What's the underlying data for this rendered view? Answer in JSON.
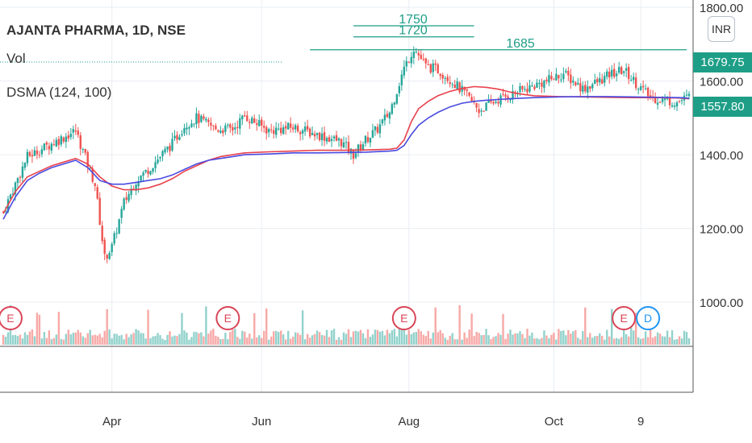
{
  "header": {
    "symbol": "AJANTA PHARMA, 1D, NSE",
    "volume_label": "Vol",
    "indicator_label": "DSMA (124, 100)",
    "currency": "INR"
  },
  "price_tags": {
    "high": "1679.75",
    "last": "1557.80"
  },
  "colors": {
    "up": "#26a69a",
    "down": "#ef5350",
    "ma_red": "#e8414b",
    "ma_blue": "#4a4ae0",
    "level_line": "#1e9e87",
    "event_badge": "#d94557",
    "dividend_badge": "#2196f3"
  },
  "chart_data": {
    "type": "candlestick",
    "title": "AJANTA PHARMA, 1D, NSE",
    "x_ticks": [
      {
        "label": "Apr",
        "x": 45
      },
      {
        "label": "Jun",
        "x": 107
      },
      {
        "label": "Aug",
        "x": 168
      },
      {
        "label": "Oct",
        "x": 228
      },
      {
        "label": "9",
        "x": 264
      }
    ],
    "x_range": [
      0,
      284
    ],
    "y_ticks": [
      "1000.00",
      "1200.00",
      "1400.00",
      "1600.00",
      "1800.00"
    ],
    "y_range": [
      880,
      1820
    ],
    "levels": [
      {
        "label": "1750",
        "value": 1750,
        "x_start": 145,
        "x_end": 195
      },
      {
        "label": "1720",
        "value": 1720,
        "x_start": 145,
        "x_end": 195
      },
      {
        "label": "1685",
        "value": 1685,
        "x_start": 127,
        "x_end": 283
      }
    ],
    "events": [
      {
        "label": "E",
        "x": 3
      },
      {
        "label": "E",
        "x": 93
      },
      {
        "label": "E",
        "x": 166
      },
      {
        "label": "E",
        "x": 257
      },
      {
        "label": "D",
        "x": 267
      }
    ],
    "series": [
      {
        "name": "Price",
        "kind": "candles",
        "points": [
          [
            0,
            1245
          ],
          [
            10,
            1395
          ],
          [
            20,
            1430
          ],
          [
            30,
            1465
          ],
          [
            38,
            1320
          ],
          [
            42,
            1120
          ],
          [
            45,
            1150
          ],
          [
            50,
            1270
          ],
          [
            55,
            1330
          ],
          [
            60,
            1360
          ],
          [
            70,
            1430
          ],
          [
            75,
            1480
          ],
          [
            80,
            1500
          ],
          [
            88,
            1470
          ],
          [
            95,
            1470
          ],
          [
            100,
            1505
          ],
          [
            110,
            1465
          ],
          [
            120,
            1475
          ],
          [
            130,
            1455
          ],
          [
            140,
            1435
          ],
          [
            145,
            1400
          ],
          [
            150,
            1440
          ],
          [
            155,
            1470
          ],
          [
            160,
            1515
          ],
          [
            166,
            1635
          ],
          [
            170,
            1690
          ],
          [
            175,
            1640
          ],
          [
            180,
            1630
          ],
          [
            185,
            1605
          ],
          [
            192,
            1560
          ],
          [
            197,
            1520
          ],
          [
            205,
            1550
          ],
          [
            215,
            1575
          ],
          [
            225,
            1600
          ],
          [
            232,
            1620
          ],
          [
            240,
            1580
          ],
          [
            247,
            1600
          ],
          [
            252,
            1620
          ],
          [
            257,
            1630
          ],
          [
            262,
            1595
          ],
          [
            268,
            1555
          ],
          [
            274,
            1548
          ],
          [
            279,
            1542
          ],
          [
            284,
            1558
          ]
        ]
      },
      {
        "name": "SMA 124",
        "color": "#e8414b",
        "points": [
          [
            0,
            1240
          ],
          [
            5,
            1300
          ],
          [
            10,
            1340
          ],
          [
            15,
            1355
          ],
          [
            20,
            1370
          ],
          [
            25,
            1380
          ],
          [
            30,
            1390
          ],
          [
            35,
            1375
          ],
          [
            40,
            1340
          ],
          [
            45,
            1315
          ],
          [
            50,
            1305
          ],
          [
            55,
            1305
          ],
          [
            60,
            1310
          ],
          [
            65,
            1320
          ],
          [
            70,
            1335
          ],
          [
            75,
            1355
          ],
          [
            80,
            1370
          ],
          [
            85,
            1385
          ],
          [
            90,
            1395
          ],
          [
            95,
            1400
          ],
          [
            100,
            1405
          ],
          [
            110,
            1408
          ],
          [
            120,
            1410
          ],
          [
            130,
            1412
          ],
          [
            140,
            1412
          ],
          [
            150,
            1413
          ],
          [
            160,
            1415
          ],
          [
            163,
            1418
          ],
          [
            166,
            1440
          ],
          [
            169,
            1490
          ],
          [
            172,
            1525
          ],
          [
            176,
            1545
          ],
          [
            180,
            1560
          ],
          [
            185,
            1572
          ],
          [
            190,
            1580
          ],
          [
            195,
            1585
          ],
          [
            200,
            1583
          ],
          [
            205,
            1578
          ],
          [
            210,
            1570
          ],
          [
            215,
            1564
          ],
          [
            220,
            1560
          ],
          [
            230,
            1558
          ],
          [
            240,
            1557
          ],
          [
            250,
            1556
          ],
          [
            260,
            1555
          ],
          [
            270,
            1555
          ],
          [
            280,
            1554
          ],
          [
            284,
            1552
          ]
        ]
      },
      {
        "name": "SMA 100",
        "color": "#4a4ae0",
        "points": [
          [
            0,
            1225
          ],
          [
            5,
            1285
          ],
          [
            10,
            1330
          ],
          [
            15,
            1350
          ],
          [
            20,
            1365
          ],
          [
            25,
            1375
          ],
          [
            30,
            1385
          ],
          [
            35,
            1365
          ],
          [
            40,
            1330
          ],
          [
            45,
            1320
          ],
          [
            50,
            1320
          ],
          [
            55,
            1325
          ],
          [
            60,
            1330
          ],
          [
            65,
            1335
          ],
          [
            70,
            1345
          ],
          [
            75,
            1360
          ],
          [
            80,
            1375
          ],
          [
            85,
            1385
          ],
          [
            90,
            1390
          ],
          [
            95,
            1395
          ],
          [
            100,
            1400
          ],
          [
            110,
            1402
          ],
          [
            120,
            1405
          ],
          [
            130,
            1405
          ],
          [
            140,
            1406
          ],
          [
            150,
            1407
          ],
          [
            160,
            1410
          ],
          [
            163,
            1412
          ],
          [
            166,
            1425
          ],
          [
            169,
            1455
          ],
          [
            172,
            1480
          ],
          [
            176,
            1500
          ],
          [
            180,
            1515
          ],
          [
            185,
            1530
          ],
          [
            190,
            1540
          ],
          [
            195,
            1545
          ],
          [
            200,
            1548
          ],
          [
            205,
            1550
          ],
          [
            210,
            1552
          ],
          [
            220,
            1555
          ],
          [
            230,
            1557
          ],
          [
            240,
            1558
          ],
          [
            250,
            1558
          ],
          [
            260,
            1557
          ],
          [
            270,
            1556
          ],
          [
            280,
            1555
          ],
          [
            284,
            1553
          ]
        ]
      }
    ],
    "grid": true
  }
}
